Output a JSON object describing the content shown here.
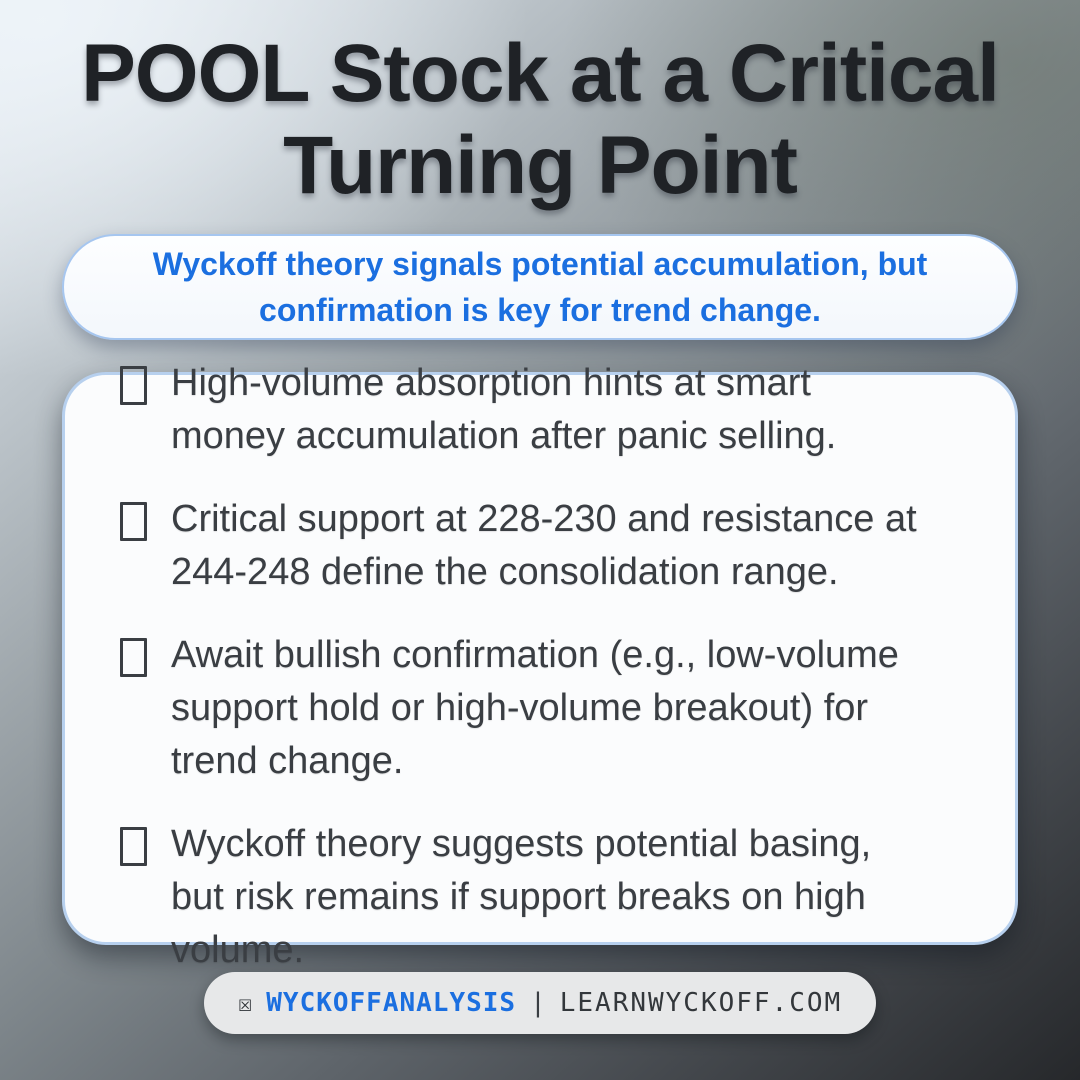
{
  "title": {
    "text": "POOL Stock at a Critical\nTurning Point"
  },
  "subtitle": {
    "text": "Wyckoff theory signals potential accumulation, but\nconfirmation is key for trend change."
  },
  "bullets": [
    {
      "icon": "missing-emoji-tofu",
      "text": "High-volume absorption hints at smart\nmoney accumulation after panic selling."
    },
    {
      "icon": "missing-emoji-tofu",
      "text": "Critical support at 228-230 and resistance at\n244-248 define the consolidation range."
    },
    {
      "icon": "missing-emoji-tofu",
      "text": "Await bullish confirmation (e.g., low-volume\nsupport hold or high-volume breakout) for\ntrend change."
    },
    {
      "icon": "missing-emoji-tofu",
      "text": "Wyckoff theory suggests potential basing,\nbut risk remains if support breaks on high\nvolume."
    }
  ],
  "footer": {
    "icon": "ballot-x-tofu",
    "icon_glyph": "☒",
    "handle": "WYCKOFFANALYSIS",
    "separator": "|",
    "site": "LEARNWYCKOFF.COM"
  },
  "colors": {
    "accent_blue": "#1b6fe0",
    "title_text": "#1f2226",
    "body_text": "#3a3e43",
    "pill_border": "#a6c6ef",
    "card_border": "#b7d0ee",
    "card_bg": "#fbfcfd",
    "footer_bg": "#e7e8e9",
    "bg_light": "#e8eef4",
    "bg_dark": "#26282b"
  }
}
